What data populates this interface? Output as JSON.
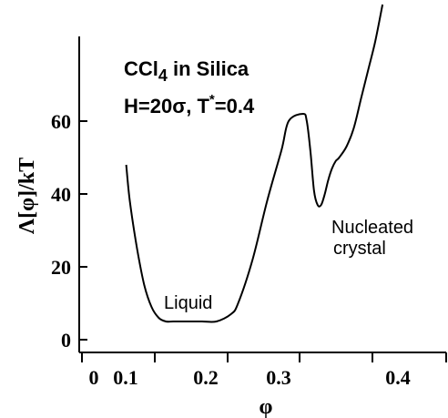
{
  "chart_data": {
    "type": "line",
    "title_lines": [
      "CCl4 in Silica",
      "H=20σ,  T*=0.4"
    ],
    "xlabel": "φ",
    "ylabel": "Λ[φ]/kT",
    "xlim": [
      0.0,
      0.5
    ],
    "ylim": [
      0,
      80
    ],
    "x_ticks": [
      0,
      0.1,
      0.2,
      0.3,
      0.4
    ],
    "x_tick_labels": [
      "0",
      "0.1",
      "0.2",
      "0.3",
      "0.4"
    ],
    "y_ticks": [
      0,
      20,
      40,
      60
    ],
    "y_tick_labels": [
      "0",
      "20",
      "40",
      "60"
    ],
    "grid": false,
    "series": [
      {
        "x": [
          0.055,
          0.06,
          0.07,
          0.08,
          0.09,
          0.1,
          0.11,
          0.12,
          0.14,
          0.16,
          0.18,
          0.2,
          0.21,
          0.23,
          0.25,
          0.27,
          0.28,
          0.3,
          0.305,
          0.31,
          0.315,
          0.32,
          0.325,
          0.33,
          0.335,
          0.34,
          0.345,
          0.35,
          0.36,
          0.37,
          0.38,
          0.39,
          0.4,
          0.41
        ],
        "y": [
          48,
          38,
          25,
          15,
          9,
          6,
          5,
          5,
          5,
          5,
          5,
          7,
          10,
          22,
          38,
          52,
          60,
          62,
          60,
          52,
          41,
          37,
          37,
          40,
          44,
          47,
          49,
          50,
          53,
          58,
          66,
          74,
          82,
          92
        ]
      }
    ],
    "annotations": [
      {
        "text": "Liquid",
        "x": 0.19,
        "y": 10
      },
      {
        "text": "Nucleated",
        "x": 0.36,
        "y": 35
      },
      {
        "text": "crystal",
        "x": 0.36,
        "y": 27
      }
    ]
  }
}
